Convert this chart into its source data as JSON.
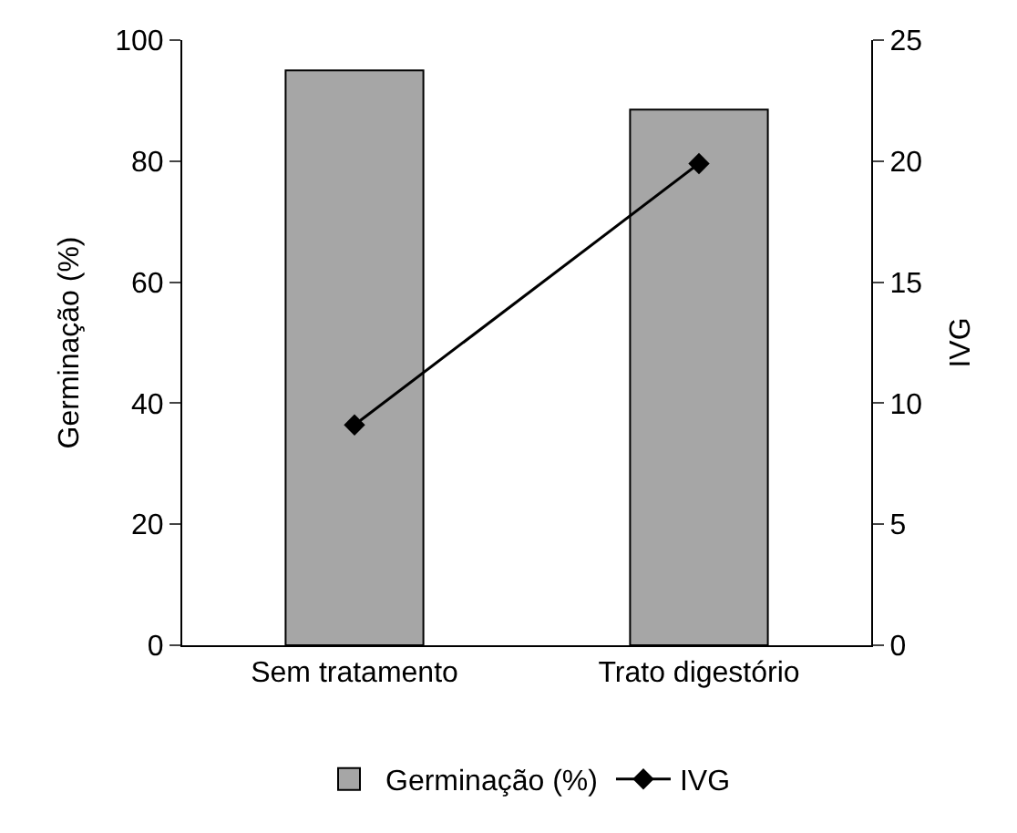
{
  "chart_data": {
    "type": "bar",
    "categories": [
      "Sem tratamento",
      "Trato digestório"
    ],
    "ylabel": "Germinação (%)",
    "y2label": "IVG",
    "series": [
      {
        "name": "Germinação (%)",
        "color": "#a6a6a6",
        "values": [
          95,
          88.5
        ]
      },
      {
        "name": "IVG",
        "type": "line",
        "color": "#000000",
        "axis": "y2",
        "values": [
          9.1,
          19.9
        ]
      }
    ],
    "ylim": [
      0,
      100
    ],
    "yticks": [
      0,
      20,
      40,
      60,
      80,
      100
    ],
    "y2lim": [
      0,
      25
    ],
    "y2ticks": [
      0,
      5,
      10,
      15,
      20,
      25
    ],
    "legend": "bottom",
    "marker": "diamond",
    "line_style": "solid"
  }
}
